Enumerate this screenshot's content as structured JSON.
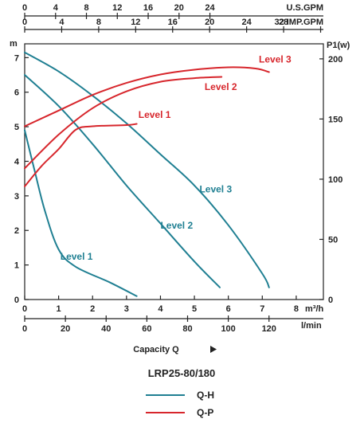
{
  "chart_data": {
    "type": "line",
    "title": "LRP25-80/180",
    "xlabel": "Capacity Q",
    "units": {
      "flow_m3h": "m³/h",
      "flow_lmin": "l/min",
      "flow_usgpm": "U.S.GPM",
      "flow_impgpm": "IMP.GPM",
      "head": "m",
      "power": "P1(w)"
    },
    "x_axes": {
      "m3h": {
        "range": [
          0,
          8.8
        ],
        "ticks": [
          "0",
          "1",
          "2",
          "3",
          "4",
          "5",
          "6",
          "7",
          "8"
        ]
      },
      "lmin": {
        "range": [
          0,
          146.7
        ],
        "ticks": [
          "0",
          "20",
          "40",
          "60",
          "80",
          "100",
          "120"
        ]
      },
      "usgpm": {
        "range": [
          0,
          38.7
        ],
        "ticks": [
          "0",
          "4",
          "8",
          "12",
          "16",
          "20",
          "24"
        ]
      },
      "impgpm": {
        "range": [
          0,
          32.3
        ],
        "ticks": [
          "0",
          "4",
          "8",
          "12",
          "16",
          "20",
          "24",
          "28",
          "32"
        ]
      }
    },
    "y_axes": {
      "head": {
        "range": [
          0,
          7.4
        ],
        "ticks": [
          "0",
          "1",
          "2",
          "3",
          "4",
          "5",
          "6",
          "7"
        ]
      },
      "power": {
        "range": [
          0,
          212.5
        ],
        "ticks": [
          "0",
          "50",
          "100",
          "150",
          "200"
        ]
      }
    },
    "series": [
      {
        "name": "Level 1",
        "kind": "Q-H",
        "unit": "m",
        "points": [
          [
            0,
            4.9
          ],
          [
            0.3,
            3.7
          ],
          [
            0.6,
            2.55
          ],
          [
            1.0,
            1.45
          ],
          [
            1.5,
            0.95
          ],
          [
            2.5,
            0.5
          ],
          [
            3.3,
            0.1
          ]
        ]
      },
      {
        "name": "Level 2",
        "kind": "Q-H",
        "unit": "m",
        "points": [
          [
            0,
            6.5
          ],
          [
            1.0,
            5.6
          ],
          [
            2.0,
            4.5
          ],
          [
            3.0,
            3.3
          ],
          [
            4.0,
            2.2
          ],
          [
            5.0,
            1.1
          ],
          [
            5.75,
            0.35
          ]
        ]
      },
      {
        "name": "Level 3",
        "kind": "Q-H",
        "unit": "m",
        "points": [
          [
            0,
            7.15
          ],
          [
            1.0,
            6.6
          ],
          [
            2.0,
            5.9
          ],
          [
            3.0,
            5.1
          ],
          [
            4.0,
            4.2
          ],
          [
            5.0,
            3.3
          ],
          [
            6.0,
            2.15
          ],
          [
            7.0,
            0.75
          ],
          [
            7.2,
            0.35
          ]
        ]
      },
      {
        "name": "Level 1",
        "kind": "Q-P",
        "unit": "W",
        "points": [
          [
            0,
            94
          ],
          [
            0.5,
            111
          ],
          [
            1.0,
            125
          ],
          [
            1.5,
            141
          ],
          [
            2.0,
            144
          ],
          [
            3.0,
            145
          ],
          [
            3.3,
            146
          ]
        ]
      },
      {
        "name": "Level 2",
        "kind": "Q-P",
        "unit": "W",
        "points": [
          [
            0,
            109
          ],
          [
            1.0,
            137
          ],
          [
            2.0,
            159
          ],
          [
            3.0,
            173
          ],
          [
            4.0,
            181
          ],
          [
            5.0,
            184
          ],
          [
            5.8,
            185
          ]
        ]
      },
      {
        "name": "Level 3",
        "kind": "Q-P",
        "unit": "W",
        "points": [
          [
            0,
            144
          ],
          [
            1.0,
            157
          ],
          [
            2.0,
            170
          ],
          [
            3.0,
            180
          ],
          [
            4.0,
            187
          ],
          [
            5.0,
            191
          ],
          [
            6.0,
            193
          ],
          [
            6.8,
            192
          ],
          [
            7.2,
            189
          ]
        ]
      }
    ],
    "series_labels": [
      {
        "text": "Level 1",
        "kind": "Q-H",
        "at": [
          1.05,
          1.15
        ]
      },
      {
        "text": "Level 2",
        "kind": "Q-H",
        "at": [
          4.0,
          2.05
        ]
      },
      {
        "text": "Level 3",
        "kind": "Q-H",
        "at": [
          5.15,
          3.1
        ]
      },
      {
        "text": "Level 1",
        "kind": "Q-P",
        "at": [
          3.35,
          151
        ]
      },
      {
        "text": "Level 2",
        "kind": "Q-P",
        "at": [
          5.3,
          174
        ]
      },
      {
        "text": "Level 3",
        "kind": "Q-P",
        "at": [
          6.9,
          197
        ]
      }
    ],
    "colors": {
      "Q-H": "#1f7f92",
      "Q-P": "#d7262c"
    },
    "legend": [
      {
        "label": "Q-H",
        "kind": "Q-H"
      },
      {
        "label": "Q-P",
        "kind": "Q-P"
      }
    ],
    "legend_position": "bottom",
    "grid": false
  }
}
